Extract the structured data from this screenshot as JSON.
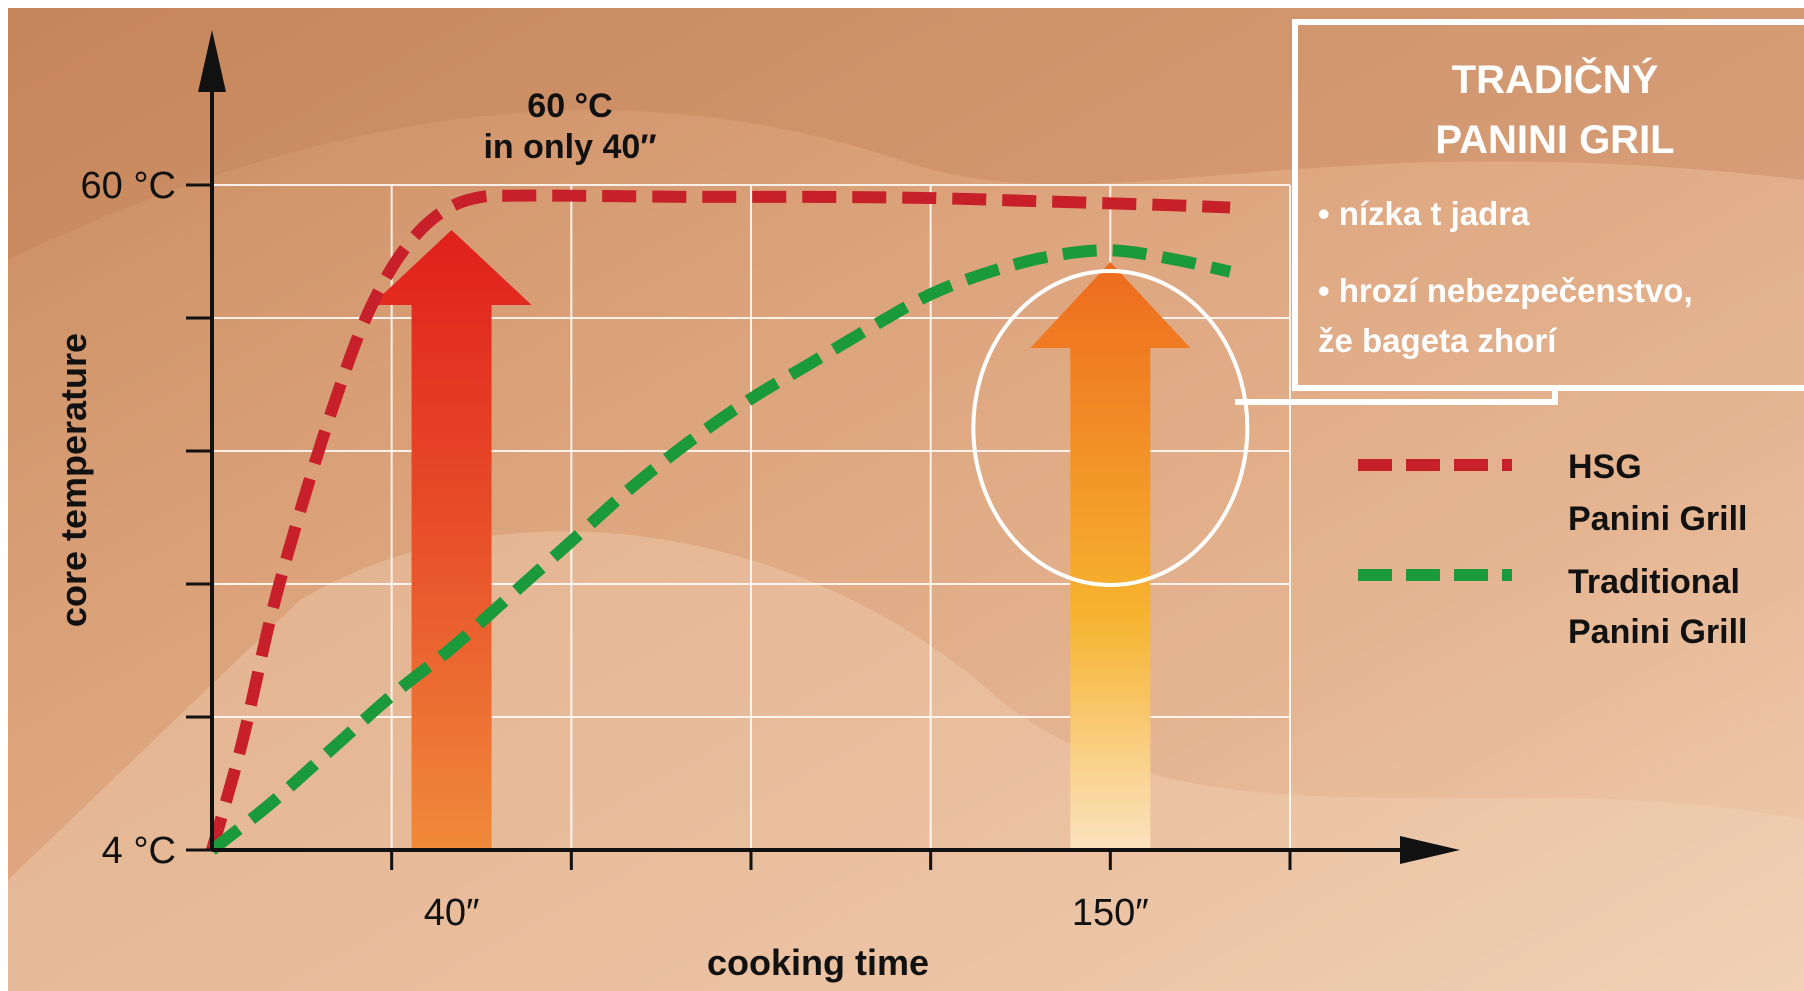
{
  "chart_data": {
    "type": "line",
    "xlabel": "cooking time",
    "ylabel": "core temperature",
    "x_ticks": [
      {
        "value": 40,
        "label": "40″"
      },
      {
        "value": 150,
        "label": "150″"
      }
    ],
    "y_ticks": [
      {
        "value": 4,
        "label": "4 °C"
      },
      {
        "value": 60,
        "label": "60 °C"
      }
    ],
    "xlim": [
      0,
      180
    ],
    "ylim": [
      4,
      60
    ],
    "grid": true,
    "series": [
      {
        "name": "HSG Panini Grill",
        "color": "#c8202b",
        "style": "dashed",
        "x": [
          0,
          5,
          10,
          15,
          20,
          25,
          30,
          35,
          40,
          45,
          50,
          60,
          80,
          100,
          120,
          140,
          160,
          170
        ],
        "y": [
          4,
          13,
          24,
          33,
          41,
          48,
          53,
          56.3,
          58.2,
          59,
          59.1,
          59.1,
          59,
          59,
          58.9,
          58.6,
          58.3,
          58.1
        ]
      },
      {
        "name": "Traditional Panini Grill",
        "color": "#1a9a3a",
        "style": "dashed",
        "x": [
          0,
          10,
          20,
          30,
          40,
          50,
          60,
          70,
          80,
          90,
          100,
          110,
          120,
          130,
          140,
          150,
          160,
          170
        ],
        "y": [
          4,
          8,
          12.5,
          17,
          21,
          25.5,
          30,
          34.5,
          38.5,
          42,
          45,
          48,
          50.8,
          52.7,
          54,
          54.5,
          53.8,
          52.7
        ]
      }
    ],
    "annotations": [
      {
        "text_lines": [
          "60 °C",
          "in only 40″"
        ],
        "x": 40
      },
      {
        "type": "arrow",
        "x": 40,
        "color": "#e8321f"
      },
      {
        "type": "arrow",
        "x": 150,
        "color": "#f5962a"
      },
      {
        "type": "ellipse",
        "x": 150
      }
    ],
    "legend": {
      "position": "right",
      "entries": [
        {
          "lines": [
            "HSG",
            "Panini Grill"
          ],
          "color": "#c8202b"
        },
        {
          "lines": [
            "Traditional",
            "Panini Grill"
          ],
          "color": "#1a9a3a"
        }
      ]
    }
  },
  "info_box": {
    "title_lines": [
      "TRADIČNÝ",
      "PANINI GRIL"
    ],
    "bullets": [
      "• nízka t jadra",
      "• hrozí nebezpečenstvo,",
      "že bageta zhorí"
    ]
  }
}
